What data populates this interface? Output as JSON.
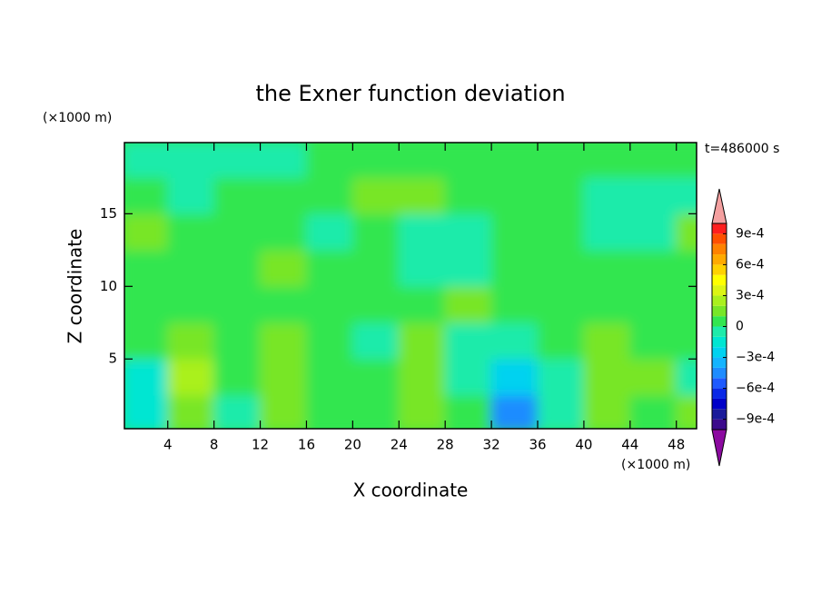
{
  "chart_data": {
    "type": "contour",
    "title": "the Exner function deviation",
    "y_unit": "(×1000 m)",
    "x_unit": "(×1000 m)",
    "annotation": "t=486000 s",
    "xlabel": "X coordinate",
    "ylabel": "Z coordinate",
    "xlim": [
      0.25,
      49.75
    ],
    "ylim": [
      0.2,
      19.9
    ],
    "xticks": [
      4,
      8,
      12,
      16,
      20,
      24,
      28,
      32,
      36,
      40,
      44,
      48
    ],
    "yticks": [
      5,
      10,
      15
    ],
    "x": [
      2,
      6,
      10,
      14,
      18,
      22,
      26,
      30,
      34,
      38,
      42,
      46,
      50
    ],
    "z": [
      1.25,
      3.75,
      6.25,
      8.75,
      11.25,
      13.75,
      16.25,
      18.75
    ],
    "values": [
      [
        -0.0002,
        0.0001,
        -0.0001,
        0.0001,
        0,
        5e-05,
        0.00015,
        0,
        -0.0005,
        -0.0001,
        0.0001,
        5e-05,
        0.0001
      ],
      [
        -0.0002,
        0.0002,
        5e-05,
        0.00015,
        5e-05,
        5e-05,
        0.00015,
        -0.0001,
        -0.0003,
        -5e-05,
        0.00015,
        0.0001,
        -0.0001
      ],
      [
        5e-05,
        0.0001,
        5e-05,
        0.00015,
        5e-05,
        -5e-05,
        0.0001,
        -5e-05,
        -0.0001,
        5e-05,
        0.0001,
        5e-05,
        5e-05
      ],
      [
        5e-05,
        5e-05,
        5e-05,
        5e-05,
        5e-05,
        5e-05,
        5e-05,
        0.00015,
        5e-05,
        5e-05,
        5e-05,
        5e-05,
        5e-05
      ],
      [
        5e-05,
        5e-05,
        5e-05,
        0.0001,
        5e-05,
        5e-05,
        -5e-05,
        -5e-05,
        5e-05,
        5e-05,
        5e-05,
        5e-05,
        5e-05
      ],
      [
        0.0001,
        5e-05,
        5e-05,
        5e-05,
        -5e-05,
        5e-05,
        -5e-05,
        -5e-05,
        5e-05,
        5e-05,
        -5e-05,
        -5e-05,
        0.0001
      ],
      [
        5e-05,
        -5e-05,
        5e-05,
        5e-05,
        5e-05,
        0.00015,
        0.0001,
        5e-05,
        5e-05,
        5e-05,
        -5e-05,
        -5e-05,
        -5e-05
      ],
      [
        -5e-05,
        -5e-05,
        -5e-05,
        -5e-05,
        5e-05,
        5e-05,
        5e-05,
        5e-05,
        5e-05,
        5e-05,
        5e-05,
        5e-05,
        5e-05
      ]
    ],
    "levels": [
      -0.001,
      -0.0009,
      -0.0008,
      -0.0007,
      -0.0006,
      -0.0005,
      -0.0004,
      -0.0003,
      -0.0002,
      -0.0001,
      0,
      0.0001,
      0.0002,
      0.0003,
      0.0004,
      0.0005,
      0.0006,
      0.0007,
      0.0008,
      0.0009,
      0.001
    ],
    "colors": [
      "#3c0a8c",
      "#1a1a9a",
      "#0000c8",
      "#0a28e6",
      "#1e5aff",
      "#1e8cff",
      "#14b4ff",
      "#00d2f0",
      "#00e6d2",
      "#1eebaa",
      "#32e650",
      "#78e628",
      "#aaf01e",
      "#dcf514",
      "#ffff00",
      "#ffd200",
      "#ffaa00",
      "#ff8200",
      "#ff5000",
      "#ff1e1e"
    ],
    "under_color": "#8c0aa0",
    "over_color": "#f4a0a0",
    "colorbar_ticks": [
      {
        "value": 0.0009,
        "label": "9e-4"
      },
      {
        "value": 0.0006,
        "label": "6e-4"
      },
      {
        "value": 0.0003,
        "label": "3e-4"
      },
      0,
      {
        "value": -0.0003,
        "label": "−3e-4"
      },
      {
        "value": -0.0006,
        "label": "−6e-4"
      },
      {
        "value": -0.0009,
        "label": "−9e-4"
      }
    ]
  }
}
